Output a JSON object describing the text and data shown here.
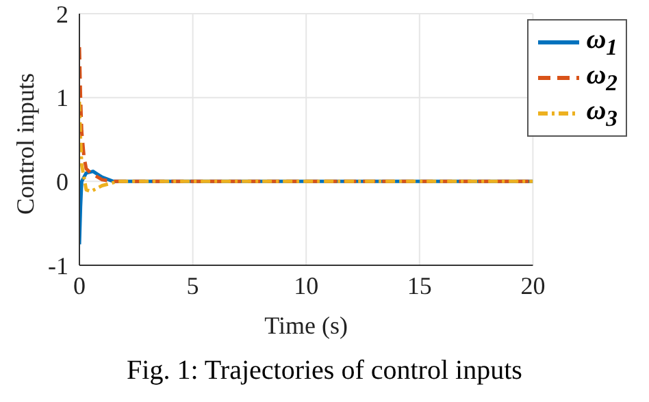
{
  "chart_data": {
    "type": "line",
    "xlabel": "Time (s)",
    "ylabel": "Control inputs",
    "annotations": [
      "Fig. 1: Trajectories of control inputs"
    ],
    "xlim": [
      0,
      20
    ],
    "xticks": [
      0,
      5,
      10,
      15,
      20
    ],
    "ylim": [
      -1,
      2
    ],
    "yticks": [
      -1,
      0,
      1,
      2
    ],
    "grid": true,
    "legend": "top right",
    "marker": "none",
    "series": [
      {
        "name": "ω$_{1}$",
        "color": "#0072bd",
        "line_style": "solid",
        "x": [
          0,
          0.05,
          0.1,
          0.3,
          0.6,
          1,
          1.5,
          20
        ],
        "values": [
          -0.75,
          -0.3,
          0,
          0.1,
          0.12,
          0.05,
          0,
          0
        ]
      },
      {
        "name": "ω$_{2}$",
        "color": "#d95319",
        "line_style": "dashed",
        "x": [
          0,
          0.05,
          0.1,
          0.2,
          0.3,
          0.5,
          1,
          1.5,
          20
        ],
        "values": [
          1.6,
          1,
          0.6,
          0.3,
          0.15,
          0.1,
          0.02,
          0,
          0
        ]
      },
      {
        "name": "ω$_{3}$",
        "color": "#edb120",
        "line_style": "dotted",
        "x": [
          0,
          0.05,
          0.1,
          0.2,
          0.3,
          0.5,
          1,
          1.7,
          20
        ],
        "values": [
          0.95,
          0.5,
          0.2,
          0.05,
          -0.1,
          -0.12,
          -0.05,
          0,
          0
        ]
      }
    ]
  }
}
